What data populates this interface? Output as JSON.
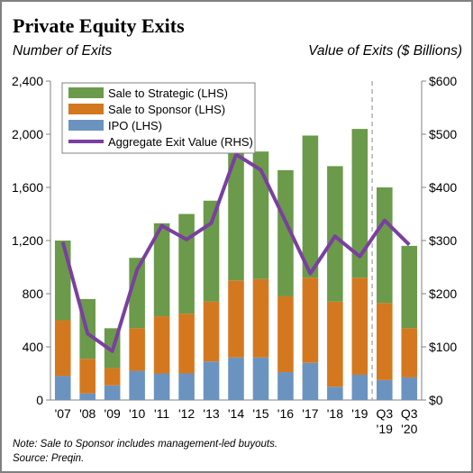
{
  "header": {
    "title": "Private Equity Exits",
    "left_axis_title": "Number of Exits",
    "right_axis_title": "Value of Exits ($ Billions)"
  },
  "footer": {
    "note": "Note: Sale to Sponsor includes management-led buyouts.",
    "source": "Source: Preqin."
  },
  "colors": {
    "strategic": "#6b9a4a",
    "sponsor": "#d4781f",
    "ipo": "#6b93c0",
    "aggregate_line": "#7a3fa0",
    "divider": "#b0b0b0"
  },
  "chart_data": {
    "type": "bar",
    "stacked": true,
    "categories": [
      "'07",
      "'08",
      "'09",
      "'10",
      "'11",
      "'12",
      "'13",
      "'14",
      "'15",
      "'16",
      "'17",
      "'18",
      "'19",
      "Q3\n'19",
      "Q3\n'20"
    ],
    "series": [
      {
        "name": "Sale to Strategic (LHS)",
        "type": "bar",
        "axis": "left",
        "color": "#6b9a4a",
        "values": [
          600,
          450,
          300,
          530,
          700,
          750,
          760,
          960,
          960,
          950,
          1070,
          1020,
          1120,
          870,
          620
        ]
      },
      {
        "name": "Sale to Sponsor (LHS)",
        "type": "bar",
        "axis": "left",
        "color": "#d4781f",
        "values": [
          420,
          260,
          130,
          320,
          430,
          450,
          450,
          580,
          590,
          570,
          640,
          640,
          730,
          580,
          370
        ]
      },
      {
        "name": "IPO (LHS)",
        "type": "bar",
        "axis": "left",
        "color": "#6b93c0",
        "values": [
          180,
          50,
          110,
          220,
          200,
          200,
          290,
          320,
          320,
          210,
          280,
          100,
          190,
          150,
          170
        ]
      },
      {
        "name": "Aggregate Exit Value (RHS)",
        "type": "line",
        "axis": "right",
        "color": "#7a3fa0",
        "values": [
          297,
          125,
          92,
          245,
          328,
          302,
          333,
          462,
          433,
          336,
          238,
          308,
          270,
          338,
          292
        ]
      }
    ],
    "left_axis": {
      "min": 0,
      "max": 2400,
      "ticks": [
        0,
        400,
        800,
        1200,
        1600,
        2000,
        2400
      ],
      "tick_labels": [
        "0",
        "400",
        "800",
        "1,200",
        "1,600",
        "2,000",
        "2,400"
      ]
    },
    "right_axis": {
      "min": 0,
      "max": 600,
      "ticks": [
        0,
        100,
        200,
        300,
        400,
        500,
        600
      ],
      "tick_labels": [
        "$0",
        "$100",
        "$200",
        "$300",
        "$400",
        "$500",
        "$600"
      ]
    },
    "legend_position": "top-left",
    "grid": false,
    "divider_before_category": "Q3\n'19"
  }
}
